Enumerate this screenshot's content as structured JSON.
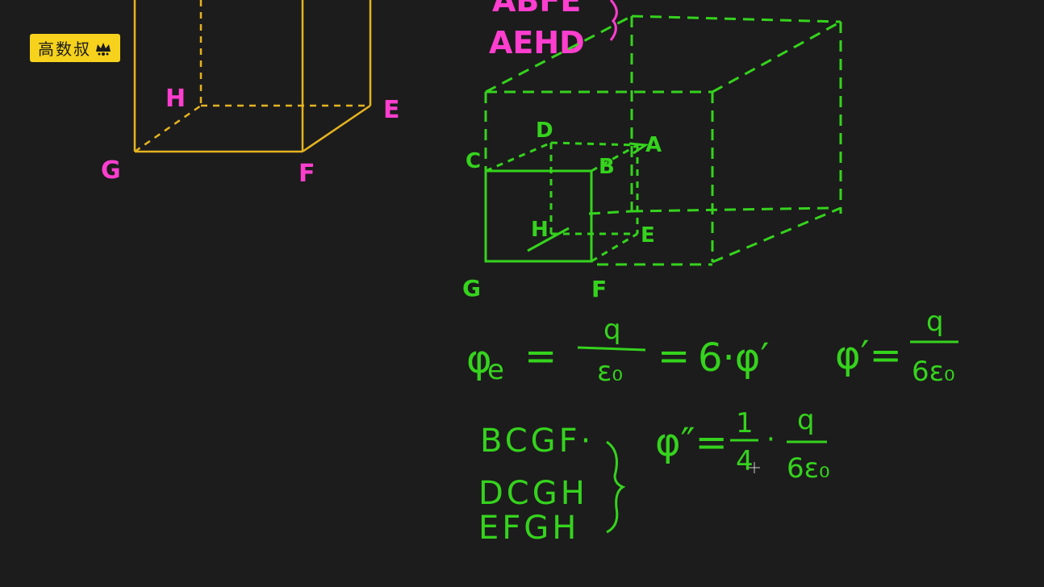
{
  "logo": {
    "text": "高数叔"
  },
  "yellow_cube": {
    "labels": {
      "e": "E",
      "f": "F",
      "g": "G",
      "h": "H"
    }
  },
  "pink_faces": {
    "line1": "ABFE",
    "line2": "AEHD"
  },
  "green_cube": {
    "labels": {
      "a": "A",
      "b": "B",
      "c": "C",
      "d": "D",
      "e": "E",
      "f": "F",
      "g": "G",
      "h": "H"
    }
  },
  "equation1": {
    "phi": "φ",
    "sub": "e",
    "eq1": "=",
    "num": "q",
    "den": "ε₀",
    "eq2": "=",
    "rhs": "6·φ′"
  },
  "equation2": {
    "lhs": "φ′=",
    "num": "q",
    "den": "6ε₀"
  },
  "faces_list": {
    "items": [
      "BCGF·",
      "DCGH",
      "EFGH"
    ]
  },
  "equation3": {
    "lhs": "φ″=",
    "num1": "1",
    "den1": "4",
    "dot": "·",
    "num2": "q",
    "den2": "6ε₀"
  },
  "colors": {
    "background": "#1c1c1c",
    "yellow": "#e5b321",
    "pink": "#ff3ecf",
    "green": "#35d31d",
    "logo_bg": "#f6d21c"
  }
}
